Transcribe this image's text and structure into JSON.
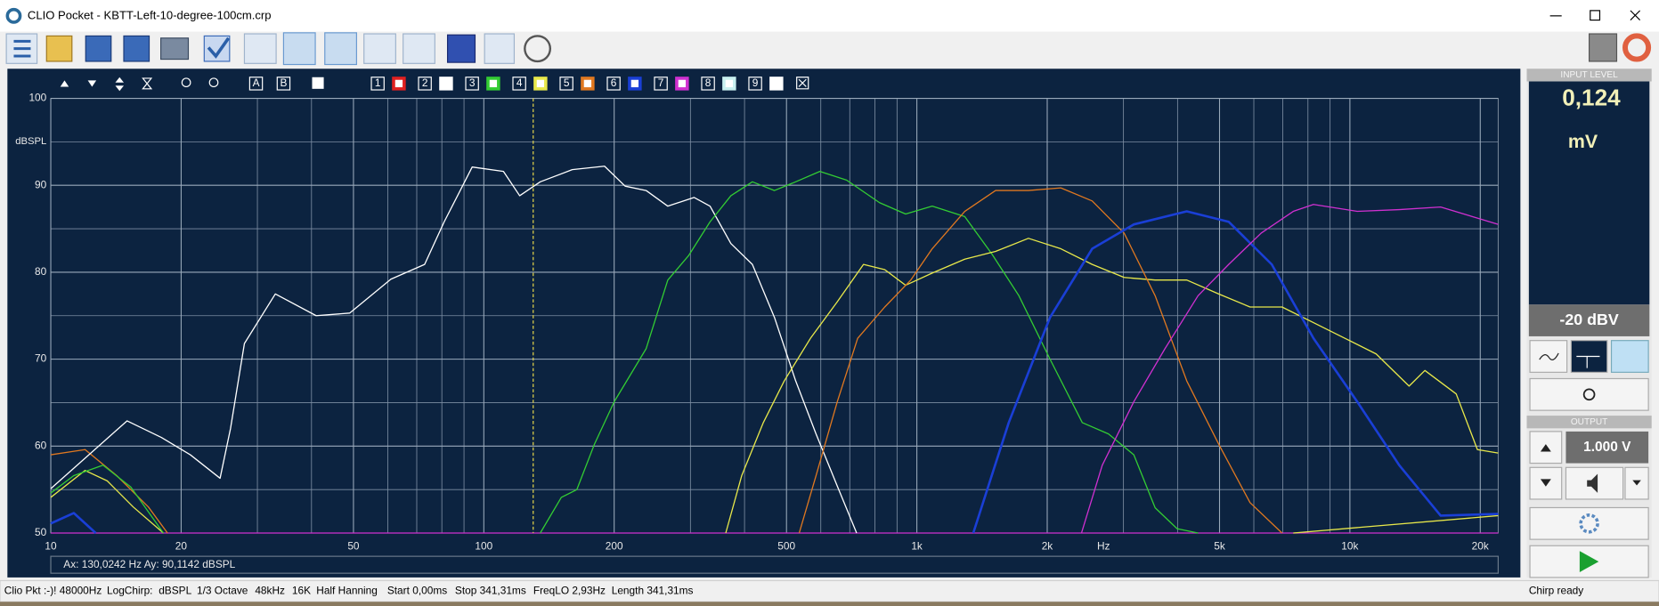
{
  "window": {
    "title": "CLIO Pocket - KBTT-Left-10-degree-100cm.crp"
  },
  "overlay_buttons": {
    "ab": [
      "A",
      "B"
    ],
    "slots": [
      {
        "label": "1",
        "color": "#e02020"
      },
      {
        "label": "2",
        "color": "#ffffff"
      },
      {
        "label": "3",
        "color": "#33cc33"
      },
      {
        "label": "4",
        "color": "#e8e84a"
      },
      {
        "label": "5",
        "color": "#e07820"
      },
      {
        "label": "6",
        "color": "#1a3fd6"
      },
      {
        "label": "7",
        "color": "#d030d0"
      },
      {
        "label": "8",
        "color": "#c8f0f0"
      },
      {
        "label": "9",
        "color": "#ffffff"
      }
    ]
  },
  "chart": {
    "type": "line",
    "y_label": "dBSPL",
    "x_unit_label": "Hz",
    "x_scale": "log",
    "xlim": [
      10,
      22000
    ],
    "ylim": [
      50,
      100
    ],
    "xticks": [
      10,
      20,
      50,
      100,
      200,
      500,
      {
        "value": 1000,
        "label": "1k"
      },
      {
        "value": 2000,
        "label": "2k"
      },
      {
        "value": 5000,
        "label": "5k"
      },
      {
        "value": 10000,
        "label": "10k"
      },
      {
        "value": 20000,
        "label": "20k"
      }
    ],
    "xminor": [
      30,
      40,
      60,
      70,
      80,
      90,
      300,
      400,
      600,
      700,
      800,
      900,
      3000,
      4000,
      6000,
      7000,
      8000,
      9000
    ],
    "yticks": [
      50,
      60,
      70,
      80,
      90,
      100
    ],
    "yminor": [
      55,
      65,
      75,
      85,
      95
    ],
    "grid": true,
    "background": "#0c2340",
    "series": [
      {
        "color": "#d030d0",
        "x": [
          10,
          22000
        ],
        "values": [
          50,
          50
        ]
      },
      {
        "color": "#e07820",
        "x": [
          10,
          12,
          14.2,
          16.8,
          18.6
        ],
        "values": [
          59,
          59.6,
          56.6,
          53,
          50
        ]
      },
      {
        "color": "#e8e84a",
        "x": [
          10,
          12,
          13.5,
          15.5,
          18.2
        ],
        "values": [
          54.1,
          57.2,
          56,
          53,
          50
        ]
      },
      {
        "color": "#33cc33",
        "x": [
          10,
          11.3,
          13.2,
          15.3,
          18.2
        ],
        "values": [
          54.6,
          56.6,
          57.8,
          55.3,
          50
        ]
      },
      {
        "color": "#1a3fd6",
        "x": [
          10,
          11.3,
          12.7
        ],
        "values": [
          51.1,
          52.3,
          50
        ]
      },
      {
        "color": "#e8e84a",
        "x": [
          7400,
          22000
        ],
        "values": [
          50,
          52
        ]
      },
      {
        "color": "#ffffff",
        "x": [
          10,
          15,
          18,
          21,
          24.6,
          26,
          28,
          33,
          41,
          49,
          61,
          73,
          81,
          94,
          111,
          121,
          135,
          160,
          190,
          212,
          237,
          266,
          306,
          333,
          372,
          417,
          469,
          525,
          585,
          655,
          726
        ],
        "values": [
          55.1,
          62.9,
          61,
          59,
          56.3,
          62,
          71.8,
          77.5,
          75,
          75.3,
          79.2,
          80.9,
          85.8,
          92.1,
          91.6,
          88.8,
          90.4,
          91.8,
          92.2,
          89.9,
          89.4,
          87.6,
          88.6,
          87.6,
          83.3,
          80.9,
          74.8,
          67.5,
          61.4,
          55.4,
          50
        ]
      },
      {
        "color": "#33cc33",
        "x": [
          135,
          151,
          164,
          180,
          200,
          237,
          266,
          297,
          333,
          372,
          417,
          469,
          525,
          597,
          688,
          820,
          942,
          1085,
          1290,
          1490,
          1720,
          2030,
          2410,
          2770,
          3170,
          3550,
          3990,
          4460
        ],
        "values": [
          50,
          54.1,
          55,
          60.2,
          65.1,
          71.2,
          79.1,
          81.9,
          85.8,
          88.8,
          90.4,
          89.4,
          90.4,
          91.6,
          90.6,
          88,
          86.7,
          87.6,
          86.4,
          82.1,
          77.3,
          70,
          62.7,
          61.4,
          59,
          52.9,
          50.5,
          50
        ]
      },
      {
        "color": "#e8e84a",
        "x": [
          362,
          394,
          442,
          494,
          568,
          655,
          753,
          843,
          942,
          1085,
          1290,
          1520,
          1810,
          2150,
          2540,
          3010,
          3550,
          4200,
          4980,
          5880,
          6970,
          8240,
          9740,
          11500,
          13700,
          14900,
          17600,
          19700,
          22000
        ],
        "values": [
          50,
          56.6,
          62.7,
          67.5,
          72.4,
          76.6,
          80.9,
          80.3,
          78.5,
          79.9,
          81.5,
          82.4,
          83.9,
          82.7,
          80.9,
          79.4,
          79.1,
          79.1,
          77.5,
          76,
          76,
          74.2,
          72.4,
          70.6,
          66.9,
          68.7,
          66,
          59.6,
          59.2
        ]
      },
      {
        "color": "#e07820",
        "x": [
          535,
          585,
          655,
          730,
          843,
          968,
          1085,
          1290,
          1520,
          1810,
          2150,
          2540,
          3010,
          3550,
          4200,
          4980,
          5880,
          6970
        ],
        "values": [
          50,
          56.6,
          65.1,
          72.4,
          76,
          79.1,
          82.7,
          87,
          89.4,
          89.4,
          89.7,
          88.2,
          84.5,
          77.3,
          67.5,
          60.2,
          53.5,
          50
        ]
      },
      {
        "color": "#1a3fd6",
        "x": [
          1350,
          1630,
          2030,
          2540,
          3170,
          4200,
          5250,
          6600,
          8240,
          10400,
          13000,
          16200,
          22000
        ],
        "values": [
          50,
          62.7,
          74.8,
          82.7,
          85.5,
          87,
          85.8,
          80.9,
          72.4,
          65.1,
          57.8,
          52,
          52.2
        ]
      },
      {
        "color": "#d030d0",
        "x": [
          2400,
          2680,
          3170,
          3740,
          4460,
          5250,
          6240,
          7400,
          8240,
          10400,
          13000,
          16200,
          22000
        ],
        "values": [
          50,
          57.8,
          65.1,
          71.2,
          77.3,
          80.9,
          84.5,
          87,
          87.8,
          87,
          87.2,
          87.5,
          85.5
        ]
      }
    ],
    "cursor": {
      "x": 130.0242,
      "color": "#e8d84a",
      "readout": "Ax: 130,0242 Hz  Ay: 90,1142 dBSPL"
    }
  },
  "side_panel": {
    "input_header": "INPUT LEVEL",
    "input_value": "0,124",
    "input_unit": "mV",
    "input_range": "-20 dBV",
    "output_header": "OUTPUT",
    "output_value": "1.000 V"
  },
  "status_bar": {
    "items": [
      "Clio Pkt :-)! 48000Hz",
      "LogChirp:",
      "dBSPL",
      "1/3 Octave",
      "48kHz",
      "16K",
      "Half Hanning",
      "Start 0,00ms",
      "Stop 341,31ms",
      "FreqLO 2,93Hz",
      "Length 341,31ms"
    ],
    "message": "Chirp ready"
  }
}
